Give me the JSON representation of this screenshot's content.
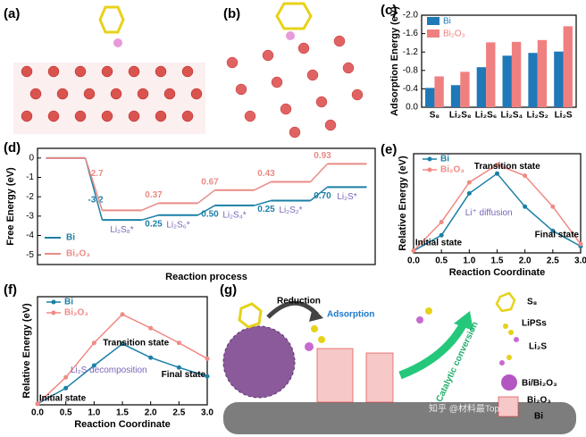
{
  "panels": [
    "(a)",
    "(b)",
    "(c)",
    "(d)",
    "(e)",
    "(f)",
    "(g)"
  ],
  "chart_data": [
    {
      "type": "bar",
      "ylabel": "Adsorption Energy (eV)",
      "categories": [
        "S₈",
        "Li₂S₈",
        "Li₂S₆",
        "Li₂S₄",
        "Li₂S₂",
        "Li₂S"
      ],
      "series": [
        {
          "name": "Bi",
          "color": "#1f78b8",
          "values": [
            -0.42,
            -0.48,
            -0.87,
            -1.12,
            -1.18,
            -1.21
          ]
        },
        {
          "name": "Bi₂O₃",
          "color": "#f08080",
          "values": [
            -0.67,
            -0.77,
            -1.41,
            -1.42,
            -1.46,
            -1.76
          ]
        }
      ],
      "ylim": [
        0,
        -2.0
      ],
      "yticks": [
        {
          "value": 0,
          "label": "0.0"
        },
        -0.4,
        -0.8,
        -1.2,
        -1.6,
        {
          "value": -2,
          "label": "-2.0"
        }
      ]
    },
    {
      "type": "step",
      "ylabel": "Free Energy (eV)",
      "xlabel": "Reaction process",
      "categories": [
        null,
        "Li₂S₈*",
        "Li₂S₆*",
        "Li₂S₄*",
        "Li₂S₂*",
        "Li₂S*"
      ],
      "series": [
        {
          "name": "Bi",
          "color": "#1b7fa6",
          "values": [
            0,
            -3.2,
            -2.95,
            -2.45,
            -2.2,
            -1.5
          ],
          "change_labels": [
            "-3.2",
            "0.25",
            "0.50",
            "0.25",
            "0.70"
          ]
        },
        {
          "name": "Bi₂O₃",
          "color": "#e98b86",
          "values": [
            0,
            -2.7,
            -2.33,
            -1.66,
            -1.23,
            -0.3
          ],
          "change_labels": [
            "-2.7",
            "0.37",
            "0.67",
            "0.43",
            "0.93"
          ]
        }
      ],
      "ylim": [
        -5.5,
        0.5
      ],
      "yticks": [
        0,
        -1,
        -2,
        -3,
        -4,
        -5
      ]
    },
    {
      "type": "line",
      "ylabel": "Relative Energy (eV)",
      "xlabel": "Reaction Coordinate",
      "x": [
        0,
        0.5,
        1,
        1.5,
        2,
        2.5,
        3
      ],
      "series": [
        {
          "name": "Bi",
          "color": "#1b7fa6",
          "values": [
            0.01,
            0.08,
            0.27,
            0.36,
            0.21,
            0.1,
            0.03
          ]
        },
        {
          "name": "Bi₂O₃",
          "color": "#f08a84",
          "values": [
            0.01,
            0.14,
            0.32,
            0.4,
            0.35,
            0.21,
            0.04
          ]
        }
      ],
      "xlim": [
        0,
        3
      ],
      "xticks": [
        {
          "value": 0,
          "label": "0.0"
        },
        0.5,
        {
          "value": 1,
          "label": "1.0"
        },
        1.5,
        {
          "value": 2,
          "label": "2.0"
        },
        2.5,
        {
          "value": 3,
          "label": "3.0"
        }
      ],
      "ylim": [
        0,
        0.45
      ],
      "annotations": [
        "Transition state",
        "Li⁺ diffusion",
        "Initial state",
        "Final state"
      ]
    },
    {
      "type": "line",
      "ylabel": "Relative Energy (eV)",
      "xlabel": "Reaction Coordinate",
      "x": [
        0,
        0.5,
        1,
        1.5,
        2,
        2.5,
        3
      ],
      "series": [
        {
          "name": "Bi",
          "color": "#1b7fa6",
          "values": [
            0.01,
            0.17,
            0.4,
            0.62,
            0.48,
            0.38,
            0.29
          ]
        },
        {
          "name": "Bi₂O₃",
          "color": "#f08a84",
          "values": [
            0.01,
            0.28,
            0.63,
            0.92,
            0.78,
            0.63,
            0.47
          ]
        }
      ],
      "xlim": [
        0,
        3
      ],
      "xticks": [
        {
          "value": 0,
          "label": "0.0"
        },
        0.5,
        {
          "value": 1,
          "label": "1.0"
        },
        1.5,
        {
          "value": 2,
          "label": "2.0"
        },
        2.5,
        {
          "value": 3,
          "label": "3.0"
        }
      ],
      "ylim": [
        0,
        1.1
      ],
      "annotations": [
        "Transition state",
        "Li₂S decomposition",
        "Initial state",
        "Final state"
      ]
    }
  ],
  "schematic": {
    "reduction": "Reduction",
    "adsorption": "Adsorption",
    "conversion": "Catalytic conversion",
    "legend": [
      "S₈",
      "LiPSs",
      "Li₂S",
      "Bi/Bi₂O₃",
      "Bi₂O₃",
      "Bi"
    ],
    "watermark": "知乎 @材料最Top"
  }
}
